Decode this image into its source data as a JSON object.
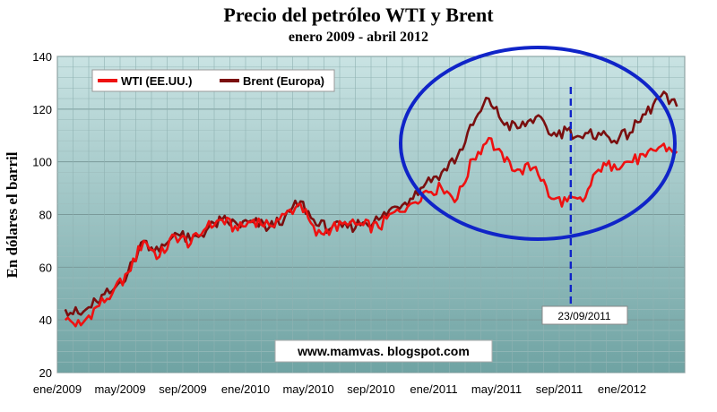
{
  "chart_data": {
    "type": "line",
    "title": "Precio del petróleo WTI y Brent",
    "subtitle": "enero 2009 - abril 2012",
    "ylabel": "En dólares el barril",
    "xlabel": "",
    "ylim": [
      20,
      140
    ],
    "yticks": [
      20,
      40,
      60,
      80,
      100,
      120,
      140
    ],
    "xlim": [
      "2009-01",
      "2012-04"
    ],
    "xticks": [
      "ene/2009",
      "may/2009",
      "sep/2009",
      "ene/2010",
      "may/2010",
      "sep/2010",
      "ene/2011",
      "may/2011",
      "sep/2011",
      "ene/2012"
    ],
    "grid": true,
    "legend_position": "top-left",
    "x": [
      "2009-01",
      "2009-02",
      "2009-03",
      "2009-04",
      "2009-05",
      "2009-06",
      "2009-07",
      "2009-08",
      "2009-09",
      "2009-10",
      "2009-11",
      "2009-12",
      "2010-01",
      "2010-02",
      "2010-03",
      "2010-04",
      "2010-05",
      "2010-06",
      "2010-07",
      "2010-08",
      "2010-09",
      "2010-10",
      "2010-11",
      "2010-12",
      "2011-01",
      "2011-02",
      "2011-03",
      "2011-04",
      "2011-05",
      "2011-06",
      "2011-07",
      "2011-08",
      "2011-09",
      "2011-10",
      "2011-11",
      "2011-12",
      "2012-01",
      "2012-02",
      "2012-03",
      "2012-04"
    ],
    "series": [
      {
        "name": "WTI (EE.UU.)",
        "color": "#ee1111",
        "values": [
          40,
          38,
          45,
          50,
          58,
          70,
          64,
          72,
          69,
          75,
          78,
          74,
          78,
          76,
          80,
          84,
          72,
          75,
          76,
          76,
          75,
          81,
          84,
          89,
          90,
          86,
          101,
          109,
          100,
          97,
          98,
          86,
          85,
          85,
          97,
          99,
          100,
          102,
          106,
          104
        ]
      },
      {
        "name": "Brent (Europa)",
        "color": "#7a0f0f",
        "values": [
          44,
          42,
          47,
          51,
          58,
          70,
          66,
          73,
          70,
          74,
          78,
          76,
          77,
          75,
          79,
          85,
          76,
          75,
          75,
          77,
          78,
          83,
          86,
          92,
          96,
          102,
          114,
          124,
          114,
          113,
          117,
          110,
          112,
          109,
          111,
          108,
          111,
          118,
          125,
          121
        ]
      }
    ],
    "annotations": [
      {
        "text": "23/09/2011",
        "x": "2011-09-23"
      }
    ],
    "highlight_shape": "ellipse",
    "source_text": "www.mamvas. blogspot.com"
  },
  "colors": {
    "plot_bg_top": "#c9e3e3",
    "plot_bg_bottom": "#6fa3a3",
    "ellipse": "#1024c8",
    "dashed_line": "#1024c8"
  }
}
